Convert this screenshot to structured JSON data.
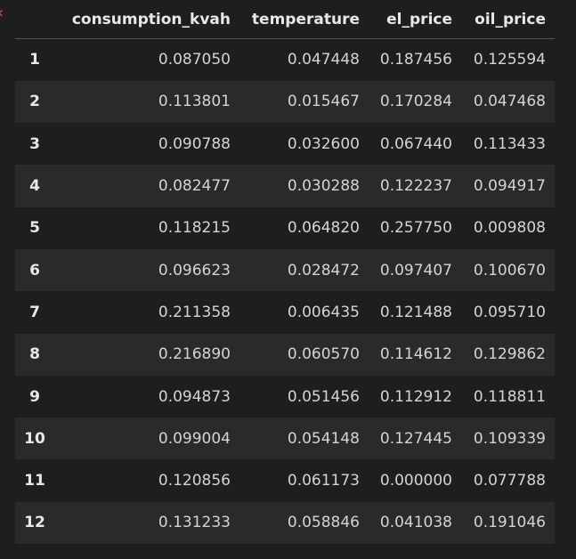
{
  "table": {
    "columns": [
      "consumption_kvah",
      "temperature",
      "el_price",
      "oil_price"
    ],
    "rows": [
      {
        "index": "1",
        "consumption_kvah": "0.087050",
        "temperature": "0.047448",
        "el_price": "0.187456",
        "oil_price": "0.125594"
      },
      {
        "index": "2",
        "consumption_kvah": "0.113801",
        "temperature": "0.015467",
        "el_price": "0.170284",
        "oil_price": "0.047468"
      },
      {
        "index": "3",
        "consumption_kvah": "0.090788",
        "temperature": "0.032600",
        "el_price": "0.067440",
        "oil_price": "0.113433"
      },
      {
        "index": "4",
        "consumption_kvah": "0.082477",
        "temperature": "0.030288",
        "el_price": "0.122237",
        "oil_price": "0.094917"
      },
      {
        "index": "5",
        "consumption_kvah": "0.118215",
        "temperature": "0.064820",
        "el_price": "0.257750",
        "oil_price": "0.009808"
      },
      {
        "index": "6",
        "consumption_kvah": "0.096623",
        "temperature": "0.028472",
        "el_price": "0.097407",
        "oil_price": "0.100670"
      },
      {
        "index": "7",
        "consumption_kvah": "0.211358",
        "temperature": "0.006435",
        "el_price": "0.121488",
        "oil_price": "0.095710"
      },
      {
        "index": "8",
        "consumption_kvah": "0.216890",
        "temperature": "0.060570",
        "el_price": "0.114612",
        "oil_price": "0.129862"
      },
      {
        "index": "9",
        "consumption_kvah": "0.094873",
        "temperature": "0.051456",
        "el_price": "0.112912",
        "oil_price": "0.118811"
      },
      {
        "index": "10",
        "consumption_kvah": "0.099004",
        "temperature": "0.054148",
        "el_price": "0.127445",
        "oil_price": "0.109339"
      },
      {
        "index": "11",
        "consumption_kvah": "0.120856",
        "temperature": "0.061173",
        "el_price": "0.000000",
        "oil_price": "0.077788"
      },
      {
        "index": "12",
        "consumption_kvah": "0.131233",
        "temperature": "0.058846",
        "el_price": "0.041038",
        "oil_price": "0.191046"
      }
    ]
  },
  "colors": {
    "background": "#1e1e1e",
    "row_stripe": "#2a2a2a",
    "text": "#d4d4d4",
    "header_text": "#e8e8e8",
    "edge_mark": "#c95a5a"
  },
  "edge_mark_icon": "chevron-left-icon"
}
